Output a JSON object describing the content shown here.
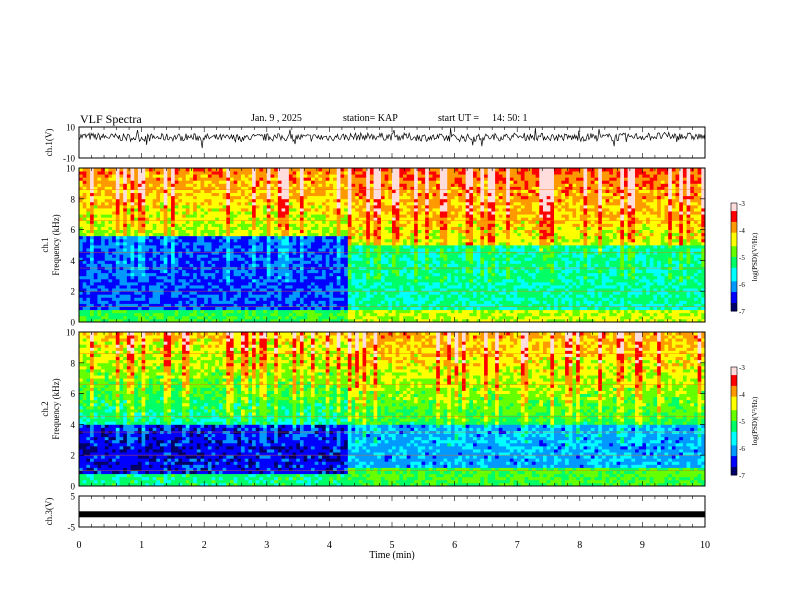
{
  "header": {
    "title": "VLF Spectra",
    "date": "Jan. 9 , 2025",
    "station": "station= KAP",
    "start": "start UT =",
    "start_time": "14: 50: 1"
  },
  "chart_data": [
    {
      "type": "line",
      "panel": "ch1-waveform",
      "ylabel": "ch.1(V)",
      "ylim": [
        -10,
        10
      ],
      "ytick_labels": [
        "10",
        "-10"
      ],
      "xlim": [
        0,
        10
      ],
      "series": [
        {
          "values": [
            3.9,
            3.7,
            3.3,
            3.1,
            3.3,
            3.5,
            3.2,
            2.9,
            3.1,
            3.3,
            3.3,
            3.2,
            3.4,
            3.7,
            3.9,
            3.8,
            3.5,
            3.1,
            3.0,
            3.1,
            3.5,
            3.8,
            3.7,
            3.4,
            3.2,
            3.3,
            3.5,
            3.9,
            4.1,
            3.9,
            3.8
          ]
        }
      ]
    },
    {
      "type": "heatmap",
      "panel": "ch1-spectrogram",
      "ylabel": "ch.1\nFrequency (kHz)",
      "ylim": [
        0,
        10
      ],
      "ytick_labels": [
        "0",
        "2",
        "4",
        "6",
        "8",
        "10"
      ],
      "xlim": [
        0,
        10
      ],
      "colorbar": {
        "label": "log(PSD)(V²/Hz)",
        "range": [
          -7,
          -3
        ],
        "tick_labels": [
          "-3",
          "-4",
          "-5",
          "-6",
          "-7"
        ]
      }
    },
    {
      "type": "heatmap",
      "panel": "ch2-spectrogram",
      "ylabel": "ch.2\nFrequency (kHz)",
      "ylim": [
        0,
        10
      ],
      "ytick_labels": [
        "0",
        "2",
        "4",
        "6",
        "8",
        "10"
      ],
      "xlim": [
        0,
        10
      ],
      "colorbar": {
        "label": "log(PSD)(V²/Hz)",
        "range": [
          -7,
          -3
        ],
        "tick_labels": [
          "-3",
          "-4",
          "-5",
          "-6",
          "-7"
        ]
      }
    },
    {
      "type": "line",
      "panel": "ch3-waveform",
      "ylabel": "ch.3(V)",
      "ylim": [
        -5,
        5
      ],
      "ytick_labels": [
        "5",
        "-5"
      ],
      "xlim": [
        0,
        10
      ],
      "series": [
        {
          "values": [
            -0.9,
            -0.9,
            -0.9,
            -0.9,
            -0.9,
            -0.9,
            -0.9,
            -0.9,
            -0.9,
            -0.9,
            -0.9
          ]
        }
      ]
    }
  ],
  "xaxis": {
    "label": "Time (min)",
    "ticks": [
      0,
      1,
      2,
      3,
      4,
      5,
      6,
      7,
      8,
      9,
      10
    ],
    "tick_labels": [
      "0",
      "1",
      "2",
      "3",
      "4",
      "5",
      "6",
      "7",
      "8",
      "9",
      "10"
    ]
  },
  "colormap": [
    "#000066",
    "#0000ff",
    "#0099ff",
    "#00ffff",
    "#00ff66",
    "#66ff00",
    "#ffff00",
    "#ff9900",
    "#ff0000",
    "#ffdddd"
  ]
}
